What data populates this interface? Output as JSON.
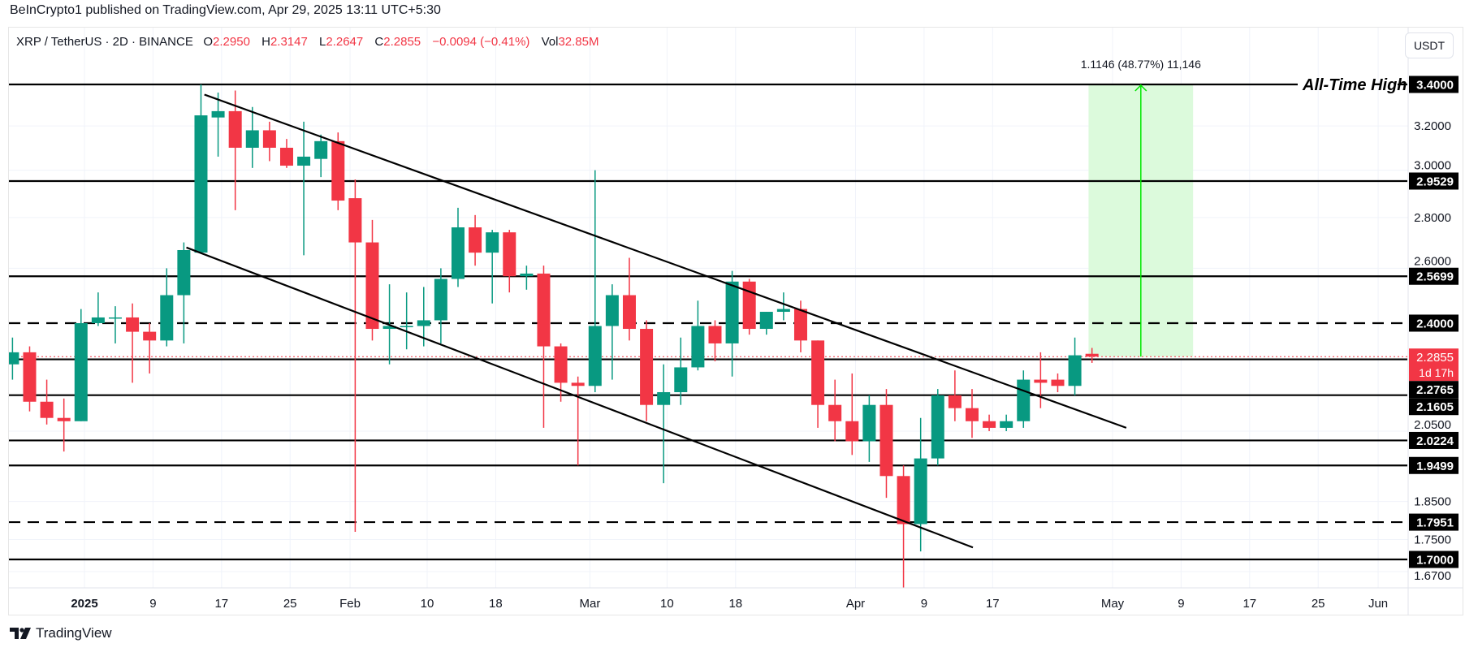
{
  "publish_line": "BeInCrypto1 published on TradingView.com, Apr 29, 2025 13:11 UTC+5:30",
  "legend": {
    "symbol": "XRP / TetherUS · 2D · BINANCE",
    "o_label": "O",
    "o": "2.2950",
    "h_label": "H",
    "h": "2.3147",
    "l_label": "L",
    "l": "2.2647",
    "c_label": "C",
    "c": "2.2855",
    "change": "−0.0094 (−0.41%)",
    "vol_label": "Vol",
    "vol": "32.85M"
  },
  "currency_button": "USDT",
  "brand": "TradingView",
  "colors": {
    "up": "#089981",
    "down": "#f23645",
    "grid": "#f0f3fa",
    "measure": "#00e600",
    "measure_fill": "#dcfadc"
  },
  "chart_data": {
    "type": "candlestick",
    "title": "XRP / TetherUS · 2D · BINANCE",
    "interval_days": 2,
    "last_candle_day": 117,
    "day_origin": "2025-01-01",
    "yscale": "log",
    "ylim": [
      1.63,
      3.45
    ],
    "ohlc": [
      [
        2.26,
        2.35,
        2.21,
        2.3
      ],
      [
        2.3,
        2.32,
        2.11,
        2.14
      ],
      [
        2.14,
        2.21,
        2.07,
        2.09
      ],
      [
        2.09,
        2.15,
        1.99,
        2.08
      ],
      [
        2.08,
        2.45,
        2.08,
        2.4
      ],
      [
        2.4,
        2.51,
        2.39,
        2.42
      ],
      [
        2.42,
        2.46,
        2.33,
        2.42
      ],
      [
        2.42,
        2.47,
        2.2,
        2.37
      ],
      [
        2.37,
        2.4,
        2.23,
        2.34
      ],
      [
        2.34,
        2.6,
        2.32,
        2.5
      ],
      [
        2.5,
        2.7,
        2.33,
        2.67
      ],
      [
        2.66,
        3.4,
        2.66,
        3.25
      ],
      [
        3.24,
        3.36,
        3.06,
        3.27
      ],
      [
        3.27,
        3.37,
        2.83,
        3.1
      ],
      [
        3.1,
        3.29,
        3.01,
        3.18
      ],
      [
        3.18,
        3.22,
        3.04,
        3.1
      ],
      [
        3.1,
        3.14,
        3.01,
        3.02
      ],
      [
        3.02,
        3.22,
        2.65,
        3.06
      ],
      [
        3.05,
        3.16,
        2.97,
        3.13
      ],
      [
        3.13,
        3.17,
        2.83,
        2.87
      ],
      [
        2.88,
        2.96,
        1.77,
        2.7
      ],
      [
        2.7,
        2.79,
        2.34,
        2.38
      ],
      [
        2.38,
        2.54,
        2.26,
        2.39
      ],
      [
        2.39,
        2.51,
        2.31,
        2.39
      ],
      [
        2.39,
        2.53,
        2.32,
        2.41
      ],
      [
        2.41,
        2.6,
        2.33,
        2.56
      ],
      [
        2.56,
        2.84,
        2.53,
        2.76
      ],
      [
        2.76,
        2.81,
        2.61,
        2.66
      ],
      [
        2.66,
        2.75,
        2.47,
        2.74
      ],
      [
        2.74,
        2.75,
        2.51,
        2.57
      ],
      [
        2.57,
        2.61,
        2.52,
        2.58
      ],
      [
        2.58,
        2.61,
        2.06,
        2.32
      ],
      [
        2.32,
        2.33,
        2.14,
        2.2
      ],
      [
        2.2,
        2.22,
        1.95,
        2.19
      ],
      [
        2.19,
        3.0,
        2.17,
        2.39
      ],
      [
        2.39,
        2.54,
        2.21,
        2.5
      ],
      [
        2.5,
        2.64,
        2.34,
        2.38
      ],
      [
        2.38,
        2.41,
        2.08,
        2.13
      ],
      [
        2.13,
        2.26,
        1.9,
        2.17
      ],
      [
        2.17,
        2.35,
        2.13,
        2.25
      ],
      [
        2.25,
        2.48,
        2.24,
        2.39
      ],
      [
        2.39,
        2.41,
        2.27,
        2.33
      ],
      [
        2.33,
        2.59,
        2.22,
        2.55
      ],
      [
        2.55,
        2.56,
        2.36,
        2.38
      ],
      [
        2.38,
        2.44,
        2.36,
        2.44
      ],
      [
        2.44,
        2.51,
        2.41,
        2.45
      ],
      [
        2.45,
        2.48,
        2.3,
        2.34
      ],
      [
        2.34,
        2.34,
        2.06,
        2.13
      ],
      [
        2.13,
        2.21,
        2.02,
        2.08
      ],
      [
        2.08,
        2.23,
        1.98,
        2.02
      ],
      [
        2.02,
        2.16,
        1.96,
        2.13
      ],
      [
        2.13,
        2.18,
        1.86,
        1.92
      ],
      [
        1.92,
        1.95,
        1.63,
        1.79
      ],
      [
        1.79,
        2.09,
        1.72,
        1.97
      ],
      [
        1.97,
        2.18,
        1.95,
        2.16
      ],
      [
        2.16,
        2.24,
        2.08,
        2.12
      ],
      [
        2.12,
        2.18,
        2.03,
        2.08
      ],
      [
        2.08,
        2.1,
        2.05,
        2.06
      ],
      [
        2.06,
        2.1,
        2.05,
        2.08
      ],
      [
        2.08,
        2.24,
        2.06,
        2.21
      ],
      [
        2.21,
        2.3,
        2.12,
        2.2
      ],
      [
        2.21,
        2.23,
        2.17,
        2.19
      ],
      [
        2.19,
        2.35,
        2.16,
        2.29
      ],
      [
        2.295,
        2.3147,
        2.2647,
        2.2855
      ]
    ],
    "x_ticks": [
      {
        "day": 0,
        "label": "2025",
        "bold": true
      },
      {
        "day": 8,
        "label": "9"
      },
      {
        "day": 16,
        "label": "17"
      },
      {
        "day": 24,
        "label": "25"
      },
      {
        "day": 31,
        "label": "Feb"
      },
      {
        "day": 40,
        "label": "10"
      },
      {
        "day": 48,
        "label": "18"
      },
      {
        "day": 59,
        "label": "Mar"
      },
      {
        "day": 68,
        "label": "10"
      },
      {
        "day": 76,
        "label": "18"
      },
      {
        "day": 90,
        "label": "Apr"
      },
      {
        "day": 98,
        "label": "9"
      },
      {
        "day": 106,
        "label": "17"
      },
      {
        "day": 120,
        "label": "May"
      },
      {
        "day": 128,
        "label": "9"
      },
      {
        "day": 136,
        "label": "17"
      },
      {
        "day": 144,
        "label": "25"
      },
      {
        "day": 151,
        "label": "Jun"
      }
    ],
    "y_ticks": [
      "3.2000",
      "3.0000",
      "2.8000",
      "2.6000",
      "2.0500",
      "1.8500",
      "1.7500",
      "1.6700"
    ],
    "levels": [
      {
        "price": 3.4,
        "label": "3.4000",
        "style": "solid",
        "note": "All-Time High"
      },
      {
        "price": 2.9529,
        "label": "2.9529",
        "style": "solid"
      },
      {
        "price": 2.5699,
        "label": "2.5699",
        "style": "solid"
      },
      {
        "price": 2.4,
        "label": "2.4000",
        "style": "dashed"
      },
      {
        "price": 2.2765,
        "label": "2.2765",
        "style": "solid"
      },
      {
        "price": 2.1605,
        "label": "2.1605",
        "style": "solid"
      },
      {
        "price": 2.0224,
        "label": "2.0224",
        "style": "solid"
      },
      {
        "price": 1.9499,
        "label": "1.9499",
        "style": "solid"
      },
      {
        "price": 1.7951,
        "label": "1.7951",
        "style": "dashed"
      },
      {
        "price": 1.7,
        "label": "1.7000",
        "style": "solid"
      }
    ],
    "current_price": {
      "price": 2.2855,
      "label": "2.2855",
      "countdown": "1d 17h"
    },
    "trendlines": [
      {
        "name": "upper-channel",
        "from": {
          "day": 14.0,
          "price": 3.35
        },
        "to": {
          "day": 121.6,
          "price": 2.06
        }
      },
      {
        "name": "lower-channel",
        "from": {
          "day": 11.9,
          "price": 2.68
        },
        "to": {
          "day": 103.7,
          "price": 1.73
        }
      }
    ],
    "measure": {
      "from_day": 117.2,
      "to_day": 129.4,
      "from_price": 2.2855,
      "to_price": 3.4,
      "label": "1.1146 (48.77%) 11,146"
    }
  }
}
